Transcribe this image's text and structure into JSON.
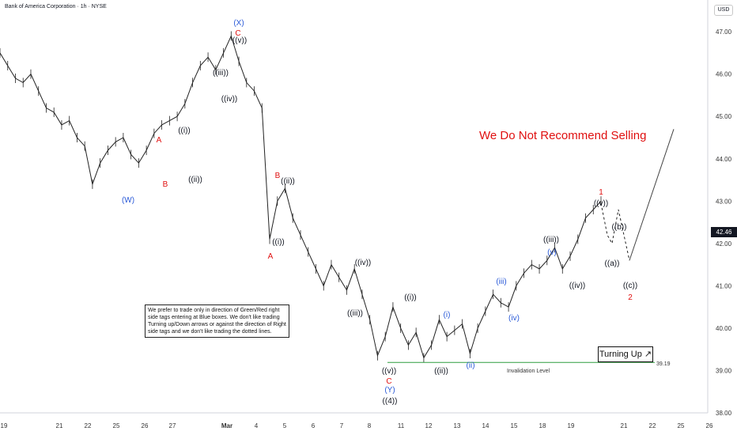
{
  "header": {
    "title": "Bank of America Corporation · 1h · NYSE",
    "currency": "USD"
  },
  "chart_data": {
    "type": "line",
    "title": "Bank of America Corporation · 1h · NYSE",
    "xlabel": "",
    "ylabel": "",
    "ylim": [
      38.0,
      47.75
    ],
    "y_ticks": [
      38.0,
      39.0,
      40.0,
      41.0,
      42.0,
      43.0,
      44.0,
      45.0,
      46.0,
      47.0
    ],
    "x_ticks": [
      "19",
      "21",
      "22",
      "25",
      "26",
      "27",
      "Mar",
      "4",
      "5",
      "6",
      "7",
      "8",
      "11",
      "12",
      "13",
      "14",
      "15",
      "18",
      "19",
      "21",
      "22",
      "25",
      "26"
    ],
    "grid": false,
    "last_price": 42.46,
    "invalidation_level": 39.19,
    "series": [
      {
        "values": [
          46.5,
          46.2,
          45.9,
          45.8,
          46.0,
          45.6,
          45.2,
          45.1,
          44.8,
          44.9,
          44.5,
          44.3,
          43.4,
          43.9,
          44.2,
          44.4,
          44.5,
          44.1,
          43.9,
          44.2,
          44.6,
          44.8,
          44.9,
          45.0,
          45.3,
          45.8,
          46.2,
          46.4,
          46.1,
          46.5,
          46.9,
          46.3,
          45.8,
          45.6,
          45.2,
          42.1,
          43.0,
          43.3,
          42.6,
          42.2,
          41.8,
          41.4,
          41.0,
          41.5,
          41.2,
          40.9,
          41.4,
          40.8,
          40.2,
          39.35,
          39.8,
          40.5,
          40.0,
          39.6,
          39.9,
          39.3,
          39.6,
          40.2,
          39.8,
          39.95,
          40.1,
          39.4,
          40.0,
          40.4,
          40.8,
          40.6,
          40.5,
          41.0,
          41.3,
          41.5,
          41.4,
          41.6,
          41.9,
          41.4,
          41.7,
          42.1,
          42.6,
          42.8,
          43.0
        ]
      }
    ],
    "projection": [
      42.95,
      42.2,
      42.0,
      42.8,
      41.6,
      44.7
    ]
  },
  "labels": {
    "W": "(W)",
    "A1": "A",
    "B1": "B",
    "i1": "((i))",
    "ii1": "((ii))",
    "iii1": "((iii))",
    "iv1": "((iv))",
    "v1": "((v))",
    "C1": "C",
    "X": "(X)",
    "B2": "B",
    "ii2": "((ii))",
    "i2": "((i))",
    "A2": "A",
    "iv2": "((iv))",
    "iii2": "((iii))",
    "v2": "((v))",
    "C2": "C",
    "Y": "(Y)",
    "four": "((4))",
    "i3": "((i))",
    "ii3": "((ii))",
    "bi": "(i)",
    "bii": "(ii)",
    "biii": "(iii)",
    "biv": "(iv)",
    "bv": "(v)",
    "iii3": "((iii))",
    "iv3": "((iv))",
    "v3": "((v))",
    "one": "1",
    "a": "((a))",
    "b": "((b))",
    "c": "((c))",
    "two": "2"
  },
  "note": "We prefer to trade only in direction of Green/Red right side tags entering at Blue boxes. We don't like trading Turning up/Down arrows or against the direction of Right side tags and we don't like trading the dotted lines.",
  "warning": "We Do Not Recommend Selling",
  "turning_up": "Turning Up ↗",
  "invalidation_label": "Invalidation Level",
  "invalidation_value": "39.19",
  "price_tag": "42.46",
  "colors": {
    "red": "#e01010",
    "blue": "#2a5ad8",
    "black": "#131722",
    "green": "#2e9e3e",
    "axis_text": "#333333"
  }
}
